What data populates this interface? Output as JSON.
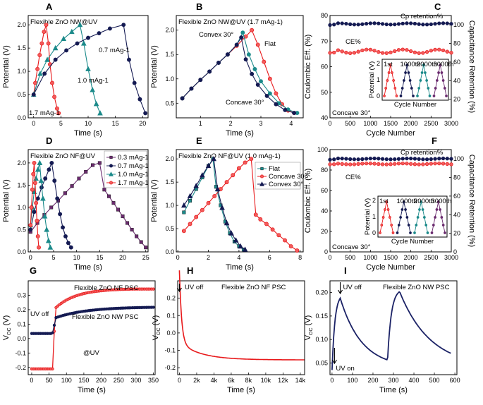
{
  "colors": {
    "red": "#e8191b",
    "navy": "#141a52",
    "teal": "#1b8a8a",
    "purple": "#6a2a6e",
    "redFill": "#f25b5b",
    "navyFill": "#1b2266"
  },
  "chart_data": [
    {
      "id": "A",
      "type": "line",
      "letter": "A",
      "title": "Flexible ZnO NW@UV",
      "xlabel": "Time (s)",
      "ylabel": "Potential (V)",
      "xlim": [
        -1,
        21
      ],
      "ylim": [
        0,
        2.2
      ],
      "xticks": [
        0,
        5,
        10,
        15,
        20
      ],
      "yticks": [
        0.0,
        0.5,
        1.0,
        1.5,
        2.0
      ],
      "xtick_labels": [
        "0",
        "5",
        "10",
        "15",
        "20"
      ],
      "ytick_labels": [
        "0.0",
        "0.5",
        "1.0",
        "1.5",
        "2.0"
      ],
      "series": [
        {
          "name": "1.7 mAg-1",
          "color": "#e8191b",
          "marker": "circle",
          "x": [
            0,
            0.3,
            0.7,
            1.1,
            1.5,
            1.9,
            2.3,
            2.7,
            3.0,
            3.4,
            3.8,
            4.3,
            4.6
          ],
          "y": [
            0.5,
            0.75,
            1.05,
            1.35,
            1.6,
            1.85,
            2.0,
            1.6,
            1.15,
            0.75,
            0.45,
            0.2,
            0.1
          ]
        },
        {
          "name": "1.0 mAg-1",
          "color": "#1b8a8a",
          "marker": "triangle",
          "x": [
            0,
            1.2,
            2.5,
            4,
            5.5,
            7,
            8.5,
            9.2,
            10,
            10.8,
            11.5,
            12.2
          ],
          "y": [
            0.5,
            0.95,
            1.25,
            1.5,
            1.7,
            1.85,
            2.0,
            1.6,
            1.05,
            0.6,
            0.3,
            0.1
          ]
        },
        {
          "name": "0.7 mAg-1",
          "color": "#141a52",
          "marker": "circle",
          "x": [
            0,
            2,
            4,
            6,
            8,
            10,
            12,
            14,
            16.5,
            17.5,
            18.5,
            19.5,
            20.5
          ],
          "y": [
            0.5,
            0.95,
            1.25,
            1.45,
            1.6,
            1.72,
            1.82,
            1.92,
            2.0,
            1.25,
            0.75,
            0.4,
            0.1
          ]
        }
      ],
      "annotations": [
        "1.7 mAg-1",
        "1.0 mAg-1",
        "0.7 mAg-1"
      ]
    },
    {
      "id": "B",
      "type": "line",
      "letter": "B",
      "title": "Flexible ZnO NW@UV (1.7 mAg-1)",
      "xlabel": "Time (s)",
      "ylabel": "Potential (V)",
      "xlim": [
        0.2,
        4.4
      ],
      "ylim": [
        0.2,
        2.3
      ],
      "xticks": [
        1,
        2,
        3,
        4
      ],
      "yticks": [
        0.5,
        1.0,
        1.5,
        2.0
      ],
      "xtick_labels": [
        "1",
        "2",
        "3",
        "4"
      ],
      "ytick_labels": [
        "0.5",
        "1.0",
        "1.5",
        "2.0"
      ],
      "series": [
        {
          "name": "Flat",
          "color": "#e8191b",
          "marker": "circle",
          "x": [
            0.4,
            0.7,
            1.0,
            1.3,
            1.6,
            1.9,
            2.2,
            2.5,
            2.7,
            2.9,
            3.1,
            3.3,
            3.5,
            3.7,
            3.9,
            4.1
          ],
          "y": [
            0.6,
            0.8,
            0.98,
            1.15,
            1.33,
            1.5,
            1.68,
            1.87,
            2.0,
            1.7,
            1.35,
            1.0,
            0.7,
            0.48,
            0.35,
            0.3
          ]
        },
        {
          "name": "Convex 30°",
          "color": "#1b8a8a",
          "marker": "circle",
          "x": [
            0.4,
            0.7,
            1.0,
            1.3,
            1.6,
            1.9,
            2.2,
            2.4,
            2.6,
            2.8,
            3.0,
            3.3,
            3.6,
            3.9,
            4.2
          ],
          "y": [
            0.6,
            0.8,
            0.98,
            1.15,
            1.33,
            1.5,
            1.7,
            1.95,
            1.5,
            1.2,
            0.95,
            0.7,
            0.5,
            0.37,
            0.3
          ]
        },
        {
          "name": "Concave 30°",
          "color": "#141a52",
          "marker": "circle",
          "x": [
            0.4,
            0.7,
            1.0,
            1.3,
            1.6,
            1.9,
            2.2,
            2.35,
            2.5,
            2.7,
            2.9,
            3.2,
            3.5,
            3.8,
            4.1
          ],
          "y": [
            0.6,
            0.8,
            0.98,
            1.15,
            1.33,
            1.5,
            1.7,
            1.85,
            1.4,
            1.1,
            0.88,
            0.65,
            0.48,
            0.36,
            0.3
          ]
        }
      ],
      "annotations": [
        "Convex 30°",
        "Flat",
        "Concave 30°"
      ]
    },
    {
      "id": "C",
      "type": "scatter",
      "letter": "C",
      "xlabel": "Cycle Number",
      "ylabel": "Coulombic Eff. (%)",
      "y2label": "Capacitance Retention (%)",
      "xlim": [
        0,
        3000
      ],
      "ylim": [
        40,
        80
      ],
      "y2lim": [
        0,
        110
      ],
      "xticks": [
        0,
        500,
        1000,
        1500,
        2000,
        2500,
        3000
      ],
      "yticks": [
        40,
        50,
        60,
        70,
        80
      ],
      "y2ticks": [
        20,
        40,
        60,
        80,
        100
      ],
      "xtick_labels": [
        "0",
        "500",
        "1000",
        "1500",
        "2000",
        "2500",
        "3000"
      ],
      "ytick_labels": [
        "40",
        "50",
        "60",
        "70",
        "80"
      ],
      "y2tick_labels": [
        "20",
        "40",
        "60",
        "80",
        "100"
      ],
      "series": [
        {
          "name": "Cp retention%",
          "color": "#141a52",
          "axis": "y2",
          "base": 101,
          "noise": 1.2
        },
        {
          "name": "CE%",
          "color": "#e8191b",
          "axis": "y",
          "base": 66,
          "noise": 1.2
        }
      ],
      "annotations": [
        "Cp retention%",
        "CE%",
        "Concave 30°"
      ],
      "inset": {
        "ylabel": "Potential (V)",
        "xlabel": "Cycle Number",
        "yticks": [
          "0",
          "1",
          "2"
        ],
        "labels": [
          "1st",
          "1000th",
          "2000th",
          "3000th"
        ]
      }
    },
    {
      "id": "D",
      "type": "line",
      "letter": "D",
      "title": "Flexible ZnO NF@UV",
      "xlabel": "Time (s)",
      "ylabel": "Potential (V)",
      "xlim": [
        -0.5,
        25.5
      ],
      "ylim": [
        0,
        2.3
      ],
      "xticks": [
        0,
        5,
        10,
        15,
        20,
        25
      ],
      "yticks": [
        0.0,
        0.5,
        1.0,
        1.5,
        2.0
      ],
      "xtick_labels": [
        "0",
        "5",
        "10",
        "15",
        "20",
        "25"
      ],
      "ytick_labels": [
        "0.0",
        "0.5",
        "1.0",
        "1.5",
        "2.0"
      ],
      "series": [
        {
          "name": "0.3 mAg-1",
          "color": "#6a2a6e",
          "marker": "square",
          "x": [
            0,
            1.5,
            3,
            4.5,
            6,
            7.5,
            9,
            10.5,
            12,
            13.5,
            15,
            16,
            17,
            18,
            19,
            20,
            21,
            22,
            23,
            24,
            25
          ],
          "y": [
            0.45,
            0.65,
            0.83,
            1.0,
            1.15,
            1.32,
            1.48,
            1.65,
            1.8,
            1.95,
            2.0,
            1.4,
            1.25,
            1.1,
            0.95,
            0.8,
            0.65,
            0.5,
            0.35,
            0.22,
            0.1
          ]
        },
        {
          "name": "0.7 mAg-1",
          "color": "#141a52",
          "marker": "circle",
          "x": [
            0,
            0.8,
            1.6,
            2.4,
            3.2,
            4,
            4.6,
            5.2,
            5.8,
            6.4,
            7,
            7.6,
            8.2,
            8.8
          ],
          "y": [
            0.5,
            0.9,
            1.2,
            1.45,
            1.65,
            1.85,
            2.0,
            1.6,
            1.2,
            0.85,
            0.55,
            0.35,
            0.2,
            0.1
          ]
        },
        {
          "name": "1.0 mAg-1",
          "color": "#1b8a8a",
          "marker": "triangle",
          "x": [
            0,
            0.4,
            0.8,
            1.2,
            1.6,
            2.0,
            2.3,
            2.7,
            3.1,
            3.5,
            3.9,
            4.3
          ],
          "y": [
            0.6,
            1.0,
            1.35,
            1.65,
            1.85,
            2.0,
            1.6,
            1.2,
            0.8,
            0.5,
            0.25,
            0.1
          ]
        },
        {
          "name": "1.7 mAg-1",
          "color": "#e8191b",
          "marker": "circle",
          "x": [
            0,
            0.2,
            0.4,
            0.6,
            0.8,
            1.0,
            1.2,
            1.4,
            1.6,
            1.8
          ],
          "y": [
            0.6,
            1.0,
            1.4,
            1.75,
            2.0,
            1.55,
            1.1,
            0.7,
            0.35,
            0.1
          ]
        }
      ]
    },
    {
      "id": "E",
      "type": "line",
      "letter": "E",
      "title": "Flexible ZnO NF@UV (1.0 mAg-1)",
      "xlabel": "Time (s)",
      "ylabel": "Potential (V)",
      "xlim": [
        -0.1,
        8.2
      ],
      "ylim": [
        0,
        2.2
      ],
      "xticks": [
        0,
        2,
        4,
        6,
        8
      ],
      "yticks": [
        0.0,
        0.5,
        1.0,
        1.5,
        2.0
      ],
      "xtick_labels": [
        "0",
        "2",
        "4",
        "6",
        "8"
      ],
      "ytick_labels": [
        "0.0",
        "0.5",
        "1.0",
        "1.5",
        "2.0"
      ],
      "series": [
        {
          "name": "Flat",
          "color": "#1b8a8a",
          "marker": "square",
          "x": [
            0.4,
            0.8,
            1.2,
            1.6,
            2.0,
            2.3,
            2.5,
            2.8,
            3.1,
            3.4,
            3.7,
            4.0,
            4.3
          ],
          "y": [
            0.85,
            1.1,
            1.35,
            1.6,
            1.85,
            2.0,
            1.4,
            1.0,
            0.65,
            0.4,
            0.22,
            0.12,
            0.05
          ]
        },
        {
          "name": "Concave 30°",
          "color": "#e8191b",
          "marker": "circle",
          "x": [
            0.4,
            0.8,
            1.2,
            1.6,
            2.0,
            2.4,
            2.8,
            3.2,
            3.6,
            4.0,
            4.4,
            4.8,
            5.1,
            5.4,
            5.8,
            6.2,
            6.6,
            7.0,
            7.4,
            7.8
          ],
          "y": [
            0.45,
            0.6,
            0.75,
            0.9,
            1.05,
            1.2,
            1.35,
            1.5,
            1.65,
            1.8,
            1.92,
            2.0,
            0.8,
            0.7,
            0.6,
            0.48,
            0.36,
            0.25,
            0.12,
            0.03
          ]
        },
        {
          "name": "Convex 30°",
          "color": "#141a52",
          "marker": "triangle",
          "x": [
            0.4,
            0.8,
            1.2,
            1.6,
            2.0,
            2.35,
            2.6,
            2.9,
            3.2,
            3.5,
            3.8,
            4.1,
            4.4
          ],
          "y": [
            1.0,
            1.2,
            1.42,
            1.65,
            1.85,
            2.0,
            1.35,
            0.95,
            0.62,
            0.4,
            0.25,
            0.12,
            0.05
          ]
        }
      ]
    },
    {
      "id": "F",
      "type": "scatter",
      "letter": "F",
      "xlabel": "Cycle Number",
      "ylabel": "Coulombic Eff. (%)",
      "y2label": "Capacitance Retention (%)",
      "xlim": [
        0,
        3000
      ],
      "ylim": [
        0,
        100
      ],
      "y2lim": [
        0,
        110
      ],
      "xticks": [
        0,
        500,
        1000,
        1500,
        2000,
        2500,
        3000
      ],
      "yticks": [
        0,
        20,
        40,
        60,
        80,
        100
      ],
      "y2ticks": [
        0,
        20,
        40,
        60,
        80,
        100
      ],
      "xtick_labels": [
        "0",
        "500",
        "1000",
        "1500",
        "2000",
        "2500",
        "3000"
      ],
      "ytick_labels": [
        "0",
        "20",
        "40",
        "60",
        "80",
        "100"
      ],
      "y2tick_labels": [
        "0",
        "20",
        "40",
        "60",
        "80",
        "100"
      ],
      "series": [
        {
          "name": "Cp retention%",
          "color": "#141a52",
          "axis": "y2",
          "base": 100,
          "noise": 0.8
        },
        {
          "name": "CE%",
          "color": "#e8191b",
          "axis": "y",
          "base": 86,
          "noise": 0.8
        }
      ],
      "annotations": [
        "Cp retention%",
        "CE%",
        "Concave 30°"
      ],
      "inset": {
        "ylabel": "Potential (V)",
        "xlabel": "Cycle Number",
        "yticks": [
          "0",
          "1",
          "2"
        ],
        "labels": [
          "1st",
          "1000th",
          "2000th",
          "3000th"
        ]
      }
    },
    {
      "id": "G",
      "type": "line",
      "letter": "G",
      "xlabel": "Time (s)",
      "ylabel": "VOC (V)",
      "xlim": [
        -10,
        355
      ],
      "ylim": [
        -0.25,
        0.4
      ],
      "xticks": [
        0,
        50,
        100,
        150,
        200,
        250,
        300,
        350
      ],
      "yticks": [
        -0.2,
        -0.1,
        0.0,
        0.1,
        0.2,
        0.3
      ],
      "xtick_labels": [
        "0",
        "50",
        "100",
        "150",
        "200",
        "250",
        "300",
        "350"
      ],
      "ytick_labels": [
        "-0.2",
        "-0.1",
        "0.0",
        "0.1",
        "0.2",
        "0.3"
      ],
      "series": [
        {
          "name": "Flexible ZnO NF PSC",
          "color": "#e8191b"
        },
        {
          "name": "Flexible ZnO NW PSC",
          "color": "#141a52"
        }
      ],
      "annotations": [
        "UV off",
        "@UV"
      ]
    },
    {
      "id": "H",
      "type": "line",
      "letter": "H",
      "xlabel": "Time (s)",
      "ylabel": "VOC (V)",
      "xlim": [
        -200,
        14500
      ],
      "ylim": [
        -0.24,
        0.3
      ],
      "xticks": [
        0,
        2000,
        4000,
        6000,
        8000,
        10000,
        12000,
        14000
      ],
      "yticks": [
        -0.2,
        -0.1,
        0.0,
        0.1,
        0.2
      ],
      "xtick_labels": [
        "0",
        "2k",
        "4k",
        "6k",
        "8k",
        "10k",
        "12k",
        "14k"
      ],
      "ytick_labels": [
        "-0.2",
        "-0.1",
        "0.0",
        "0.1",
        "0.2"
      ],
      "series": [
        {
          "name": "Flexible ZnO NF PSC",
          "color": "#e8191b"
        }
      ],
      "annotations": [
        "UV off"
      ]
    },
    {
      "id": "I",
      "type": "line",
      "letter": "I",
      "xlabel": "Time (s)",
      "ylabel": "VOC (V)",
      "xlim": [
        -10,
        610
      ],
      "ylim": [
        0.025,
        0.225
      ],
      "xticks": [
        0,
        100,
        200,
        300,
        400,
        500,
        600
      ],
      "yticks": [
        0.05,
        0.1,
        0.15,
        0.2
      ],
      "xtick_labels": [
        "0",
        "100",
        "200",
        "300",
        "400",
        "500",
        "600"
      ],
      "ytick_labels": [
        "0.05",
        "0.10",
        "0.15",
        "0.20"
      ],
      "series": [
        {
          "name": "Flexible ZnO NW PSC",
          "color": "#141a52"
        }
      ],
      "annotations": [
        "UV off",
        "UV on"
      ]
    }
  ],
  "legend_D": [
    "0.3 mAg-1",
    "0.7 mAg-1",
    "1.0 mAg-1",
    "1.7 mAg-1"
  ],
  "legend_E": [
    "Flat",
    "Concave 30°",
    "Convex 30°"
  ]
}
